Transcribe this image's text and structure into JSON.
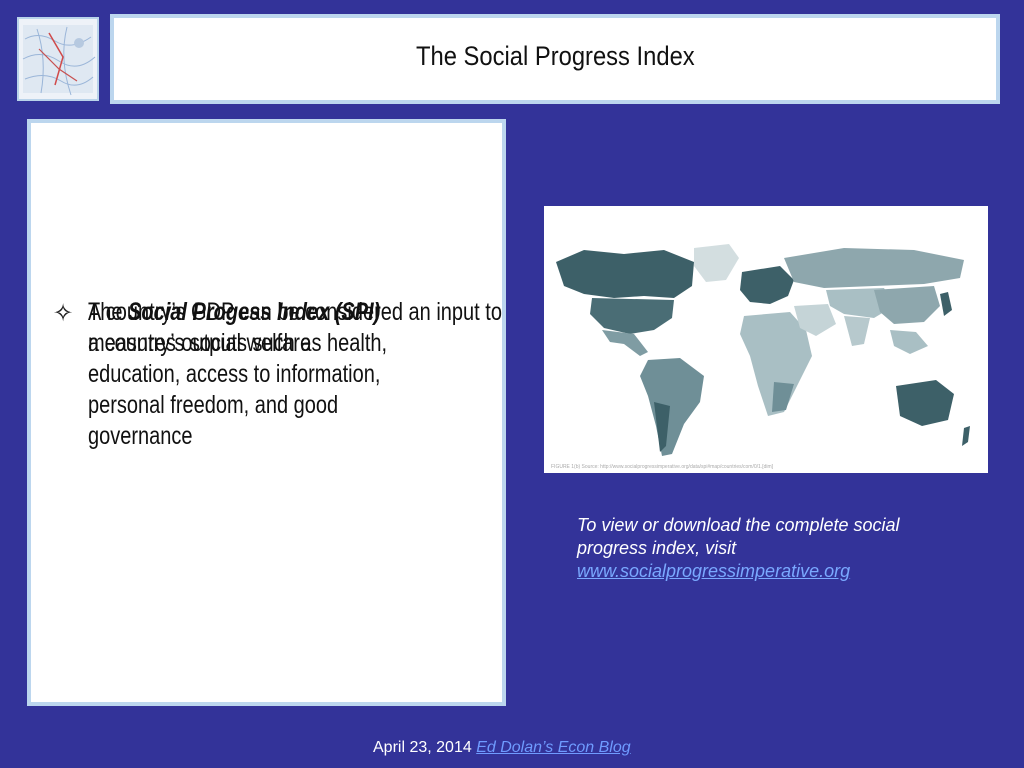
{
  "slide": {
    "title": "The Social Progress Index",
    "bullets": [
      {
        "icon": "four-point-star-icon",
        "text": "A country’s GDP can be considered an input to a country’s social welfare"
      },
      {
        "icon": "four-point-star-icon",
        "prefix": "The ",
        "emphasis": "Social Progess Index (SPI)",
        "suffix": " measures outputs such as health, education, access to information, personal freedom, and good governance"
      }
    ],
    "map_caption": "FIGURE 1(b) Source: http://www.socialprogressimperative.org/data/spi#map/countries/com/0/1.[dim]",
    "right_text": {
      "line": "To view or download the complete social progress index, visit",
      "link": "www.socialprogressimperative.org"
    },
    "footer": {
      "date": "April 23, 2014",
      "link": "Ed Dolan’s Econ Blog"
    }
  },
  "colors": {
    "background": "#333399",
    "panel_border": "#bcd6ee",
    "link": "#7aa9ff",
    "map_dark": "#3d6068",
    "map_mid": "#6f8f97",
    "map_light": "#a9bfc4",
    "map_pale": "#d3dee0"
  }
}
